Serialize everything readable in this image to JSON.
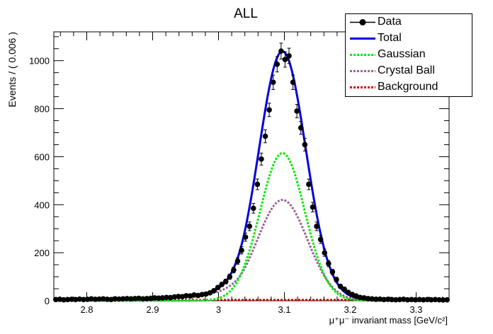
{
  "chart_data": {
    "type": "line",
    "title": "ALL",
    "xlabel": "μ⁺μ⁻ invariant mass [GeV/c²]",
    "ylabel": "Events / ( 0.006 )",
    "xlim": [
      2.75,
      3.35
    ],
    "ylim": [
      0,
      1120
    ],
    "x_ticks": [
      "2.8",
      "2.9",
      "3",
      "3.1",
      "3.2",
      "3.3"
    ],
    "y_ticks": [
      "0",
      "200",
      "400",
      "600",
      "800",
      "1000"
    ],
    "legend_position": "top-right",
    "series": [
      {
        "name": "Data",
        "kind": "points",
        "color": "#000000",
        "x": [
          2.753,
          2.759,
          2.765,
          2.771,
          2.777,
          2.783,
          2.789,
          2.795,
          2.801,
          2.807,
          2.813,
          2.819,
          2.825,
          2.831,
          2.837,
          2.843,
          2.849,
          2.855,
          2.861,
          2.867,
          2.873,
          2.879,
          2.885,
          2.891,
          2.897,
          2.903,
          2.909,
          2.915,
          2.921,
          2.927,
          2.933,
          2.939,
          2.945,
          2.951,
          2.957,
          2.963,
          2.969,
          2.975,
          2.981,
          2.987,
          2.993,
          2.999,
          3.005,
          3.011,
          3.017,
          3.023,
          3.029,
          3.035,
          3.041,
          3.047,
          3.053,
          3.059,
          3.065,
          3.071,
          3.077,
          3.083,
          3.089,
          3.095,
          3.101,
          3.107,
          3.113,
          3.119,
          3.125,
          3.131,
          3.137,
          3.143,
          3.149,
          3.155,
          3.161,
          3.167,
          3.173,
          3.179,
          3.185,
          3.191,
          3.197,
          3.203,
          3.209,
          3.215,
          3.221,
          3.227,
          3.233,
          3.239,
          3.245,
          3.251,
          3.257,
          3.263,
          3.269,
          3.275,
          3.281,
          3.287,
          3.293,
          3.299,
          3.305,
          3.311,
          3.317,
          3.323,
          3.329,
          3.335,
          3.341,
          3.347
        ],
        "y": [
          5,
          6,
          4,
          5,
          6,
          5,
          7,
          5,
          6,
          8,
          6,
          7,
          8,
          6,
          5,
          8,
          7,
          8,
          9,
          8,
          9,
          10,
          8,
          9,
          10,
          12,
          11,
          12,
          14,
          13,
          16,
          18,
          17,
          21,
          20,
          24,
          22,
          26,
          28,
          33,
          42,
          55,
          68,
          80,
          100,
          128,
          165,
          210,
          265,
          310,
          385,
          485,
          590,
          685,
          795,
          910,
          985,
          1040,
          1005,
          1020,
          910,
          790,
          720,
          650,
          485,
          390,
          310,
          255,
          200,
          155,
          120,
          88,
          60,
          48,
          35,
          26,
          20,
          14,
          12,
          9,
          8,
          6,
          7,
          5,
          6,
          5,
          4,
          5,
          6,
          4,
          5,
          4,
          5,
          4,
          5,
          4,
          5,
          4,
          3,
          4
        ],
        "error": [
          3,
          3,
          2,
          3,
          3,
          3,
          3,
          3,
          3,
          3,
          3,
          3,
          3,
          3,
          3,
          3,
          3,
          3,
          3,
          3,
          3,
          4,
          3,
          3,
          4,
          4,
          4,
          4,
          4,
          4,
          4,
          5,
          4,
          5,
          5,
          5,
          5,
          6,
          6,
          6,
          7,
          8,
          9,
          10,
          11,
          12,
          13,
          15,
          17,
          18,
          20,
          22,
          25,
          27,
          28,
          30,
          32,
          33,
          32,
          32,
          30,
          28,
          27,
          26,
          22,
          20,
          18,
          16,
          15,
          13,
          11,
          10,
          8,
          7,
          6,
          5,
          5,
          4,
          4,
          3,
          3,
          3,
          3,
          3,
          3,
          3,
          2,
          3,
          3,
          2,
          3,
          2,
          3,
          2,
          3,
          2,
          3,
          2,
          2,
          2
        ]
      },
      {
        "name": "Total",
        "kind": "curve",
        "color": "#0000dd"
      },
      {
        "name": "Gaussian",
        "kind": "curve",
        "color": "#00ee00"
      },
      {
        "name": "Crystal Ball",
        "kind": "curve",
        "color": "#996699"
      },
      {
        "name": "Background",
        "kind": "curve",
        "color": "#dd0000"
      }
    ],
    "model": {
      "mean": 3.097,
      "gaussian": {
        "amplitude": 615,
        "sigma": 0.034
      },
      "crystal_ball": {
        "amplitude": 420,
        "sigma": 0.038,
        "alpha": 1.5,
        "n": 3
      },
      "background_level": 4
    }
  }
}
